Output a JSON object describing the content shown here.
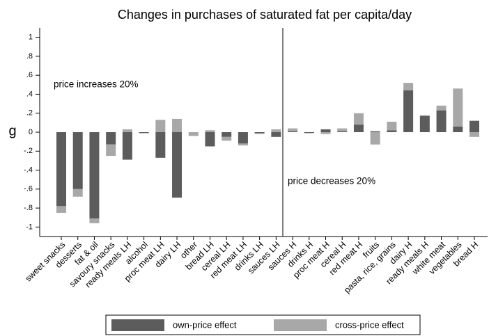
{
  "chart_data": {
    "type": "bar",
    "stacked": true,
    "title": "Changes in purchases of saturated fat per capita/day",
    "y_label": "g",
    "annotations": [
      "price increases 20%",
      "price decreases 20%"
    ],
    "categories": [
      "sweet snacks",
      "desserts",
      "fat & oil",
      "savoury snacks",
      "ready meals LH",
      "alcohol",
      "proc meat LH",
      "dairy LH",
      "other",
      "bread LH",
      "cereal LH",
      "red meat LH",
      "drinks LH",
      "sauces LH",
      "sauces H",
      "drinks H",
      "proc meat H",
      "cereal H",
      "red meat H",
      "fruits",
      "pasta, rice, grains",
      "dairy H",
      "ready meals H",
      "white meat",
      "vegetables",
      "bread H"
    ],
    "series": [
      {
        "name": "own-price effect",
        "color": "#5c5c5c",
        "values": [
          -0.78,
          -0.6,
          -0.91,
          -0.13,
          -0.29,
          -0.01,
          -0.27,
          -0.69,
          0,
          -0.15,
          -0.05,
          -0.12,
          -0.01,
          -0.05,
          0.01,
          -0.01,
          0.03,
          0.01,
          0.08,
          0.01,
          0.02,
          0.44,
          0.17,
          0.23,
          0.06,
          0.12
        ]
      },
      {
        "name": "cross-price effect",
        "color": "#a8a8a8",
        "values": [
          -0.07,
          -0.08,
          -0.05,
          -0.12,
          0.03,
          0,
          0.13,
          0.14,
          -0.04,
          0.02,
          -0.04,
          -0.02,
          -0.01,
          0.03,
          0.03,
          0,
          -0.02,
          0.03,
          0.12,
          -0.13,
          0.09,
          0.08,
          0.01,
          0.05,
          0.4,
          -0.05
        ]
      }
    ],
    "ylim": [
      -1.1,
      1.1
    ],
    "yticks": [
      -1,
      {
        "value": -0.8,
        "label": "-.8"
      },
      {
        "value": -0.6,
        "label": "-.6"
      },
      {
        "value": -0.4,
        "label": "-.4"
      },
      {
        "value": -0.2,
        "label": "-.2"
      },
      0,
      {
        "value": 0.2,
        "label": ".2"
      },
      {
        "value": 0.4,
        "label": ".4"
      },
      {
        "value": 0.6,
        "label": ".6"
      },
      {
        "value": 0.8,
        "label": ".8"
      },
      1
    ],
    "grid": false,
    "legend": "bottom"
  }
}
